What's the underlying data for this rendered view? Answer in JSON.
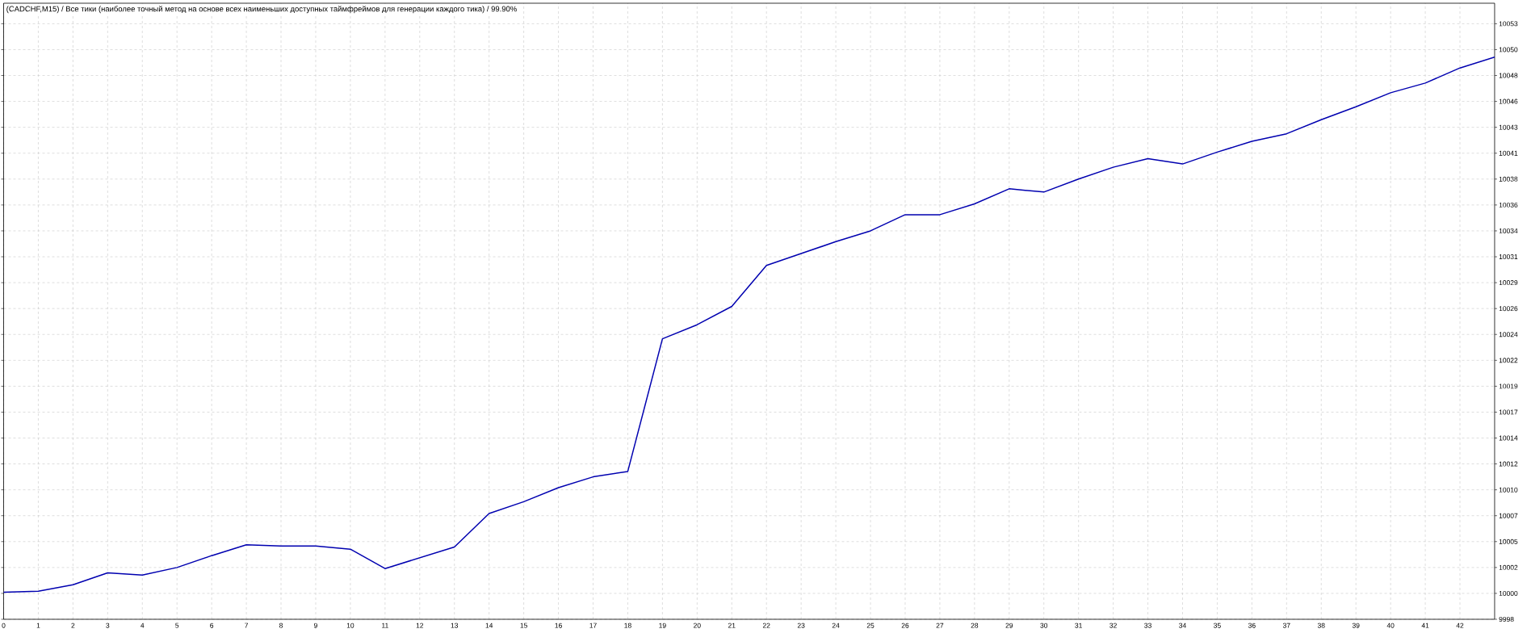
{
  "chart_data": {
    "type": "line",
    "title": "(CADCHF,M15) / Все тики (наиболее точный метод на основе всех наименьших доступных таймфреймов для генерации каждого тика) / 99.90%",
    "x": [
      0,
      1,
      2,
      3,
      4,
      5,
      6,
      7,
      8,
      9,
      10,
      11,
      12,
      13,
      14,
      15,
      16,
      17,
      18,
      19,
      20,
      21,
      22,
      23,
      24,
      25,
      26,
      27,
      28,
      29,
      30,
      31,
      32,
      33,
      34,
      35,
      36,
      37,
      38,
      39,
      40,
      41,
      42,
      43
    ],
    "values": [
      10000.1,
      10000.2,
      10000.8,
      10001.9,
      10001.7,
      10002.4,
      10003.5,
      10004.5,
      10004.4,
      10004.4,
      10004.1,
      10002.3,
      10003.3,
      10004.3,
      10007.4,
      10008.5,
      10009.8,
      10010.8,
      10011.3,
      10023.6,
      10024.9,
      10026.6,
      10030.4,
      10031.5,
      10032.6,
      10033.6,
      10035.1,
      10035.1,
      10036.1,
      10037.5,
      10037.2,
      10038.4,
      10039.5,
      10040.3,
      10039.8,
      10040.9,
      10041.9,
      10042.6,
      10043.9,
      10045.1,
      10046.4,
      10047.3,
      10048.7,
      10049.7
    ],
    "color": "#0000b0",
    "line_style": "solid",
    "xlim": [
      0,
      43
    ],
    "ylim": [
      9997.6,
      10054.7
    ],
    "xticks": [
      0,
      1,
      2,
      3,
      4,
      5,
      6,
      7,
      8,
      9,
      10,
      11,
      12,
      13,
      14,
      15,
      16,
      17,
      18,
      19,
      20,
      21,
      22,
      23,
      24,
      25,
      26,
      27,
      28,
      29,
      30,
      31,
      32,
      33,
      34,
      35,
      36,
      37,
      38,
      39,
      40,
      41,
      42
    ],
    "yticks": [
      {
        "value": 9997.6,
        "label": "9998"
      },
      10000,
      {
        "value": 10002.4,
        "label": "10002"
      },
      {
        "value": 10004.8,
        "label": "10005"
      },
      {
        "value": 10007.2,
        "label": "10007"
      },
      {
        "value": 10009.6,
        "label": "10010"
      },
      10012,
      {
        "value": 10014.4,
        "label": "10014"
      },
      {
        "value": 10016.8,
        "label": "10017"
      },
      {
        "value": 10019.2,
        "label": "10019"
      },
      {
        "value": 10021.6,
        "label": "10022"
      },
      10024,
      {
        "value": 10026.4,
        "label": "10026"
      },
      {
        "value": 10028.8,
        "label": "10029"
      },
      {
        "value": 10031.2,
        "label": "10031"
      },
      {
        "value": 10033.6,
        "label": "10034"
      },
      10036,
      {
        "value": 10038.4,
        "label": "10038"
      },
      {
        "value": 10040.8,
        "label": "10041"
      },
      {
        "value": 10043.2,
        "label": "10043"
      },
      {
        "value": 10045.6,
        "label": "10046"
      },
      10048,
      {
        "value": 10050.4,
        "label": "10050"
      },
      {
        "value": 10052.8,
        "label": "10053"
      }
    ],
    "grid": true
  }
}
